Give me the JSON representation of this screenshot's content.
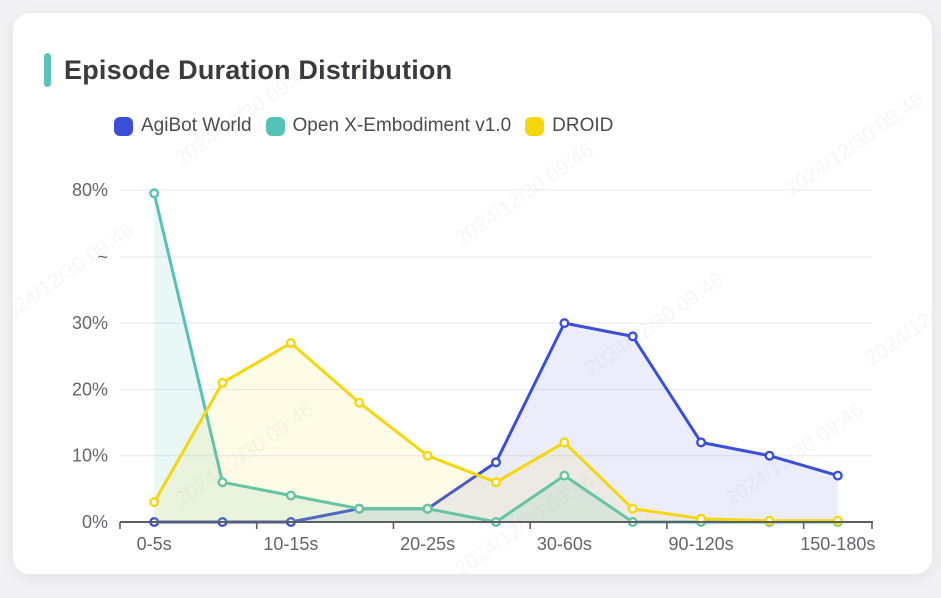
{
  "header": {
    "title": "Episode Duration Distribution",
    "accent_color": "#5fc3ba"
  },
  "watermark": {
    "text": "2024/12/30 09:46"
  },
  "colors": {
    "card_background": "#ffffff",
    "page_background": "#f1f1f3",
    "axis_line": "#5d5d66",
    "grid_line": "#e7e7f0",
    "axis_label": "#65656d"
  },
  "chart_data": {
    "type": "line",
    "title": "Episode Duration Distribution",
    "categories": [
      "0-5s",
      "",
      "10-15s",
      "",
      "20-25s",
      "",
      "30-60s",
      "",
      "90-120s",
      "",
      "150-180s"
    ],
    "series": [
      {
        "name": "AgiBot World",
        "color": "#3a4fd8",
        "fill": "rgba(58,79,216,0.10)",
        "values": [
          0,
          0,
          0,
          2,
          2,
          9,
          30,
          28,
          12,
          10,
          7
        ]
      },
      {
        "name": "Open X-Embodiment v1.0",
        "color": "#55c2b6",
        "fill": "rgba(85,194,182,0.13)",
        "values": [
          79.5,
          6,
          4,
          2,
          2,
          0,
          7,
          0,
          0,
          0,
          0
        ]
      },
      {
        "name": "DROID",
        "color": "#f5d70e",
        "fill": "rgba(245,215,14,0.10)",
        "values": [
          3,
          21,
          27,
          18,
          10,
          6,
          12,
          2,
          0.5,
          0.2,
          0.2
        ]
      }
    ],
    "y_axis": {
      "ticks": [
        {
          "label": "0%",
          "value": 0
        },
        {
          "label": "10%",
          "value": 10
        },
        {
          "label": "20%",
          "value": 20
        },
        {
          "label": "30%",
          "value": 30
        },
        {
          "label": "~",
          "value": "break"
        },
        {
          "label": "80%",
          "value": 80
        }
      ],
      "break_between": [
        30,
        80
      ],
      "unit": "%"
    },
    "legend_position": "top-left",
    "grid": true
  }
}
